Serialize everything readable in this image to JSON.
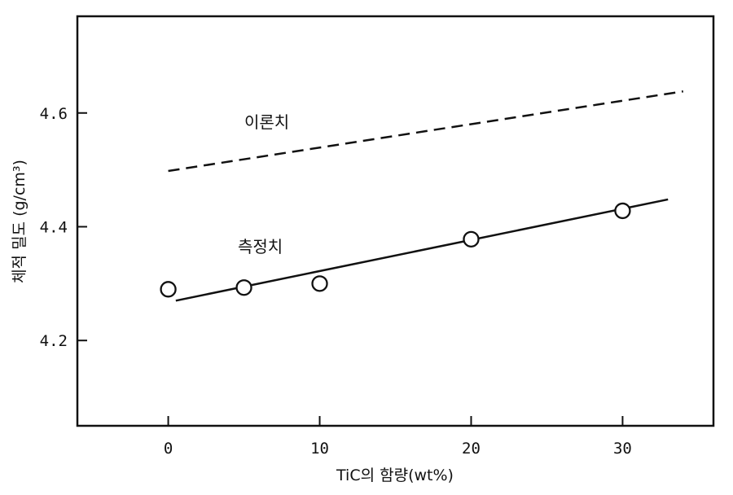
{
  "chart_data": {
    "type": "line",
    "xlabel": "TiC의 함량(wt%)",
    "ylabel": "체적 밀도 (g/cm³)",
    "xlim": [
      -6,
      36
    ],
    "ylim": [
      4.05,
      4.77
    ],
    "x_ticks": [
      0,
      10,
      20,
      30
    ],
    "x_tick_labels": [
      "0",
      "10",
      "20",
      "30"
    ],
    "y_ticks": [
      4.2,
      4.4,
      4.6
    ],
    "y_tick_labels": [
      "4.2",
      "4.4",
      "4.6"
    ],
    "grid": false,
    "series": [
      {
        "name": "이론치",
        "style": "dashed",
        "x": [
          0,
          34
        ],
        "y": [
          4.498,
          4.638
        ]
      },
      {
        "name": "측정치",
        "style": "solid",
        "fit_x": [
          0.5,
          33
        ],
        "fit_y": [
          4.27,
          4.448
        ],
        "points_x": [
          0,
          5,
          10,
          20,
          30
        ],
        "points_y": [
          4.29,
          4.293,
          4.3,
          4.378,
          4.428
        ]
      }
    ]
  }
}
